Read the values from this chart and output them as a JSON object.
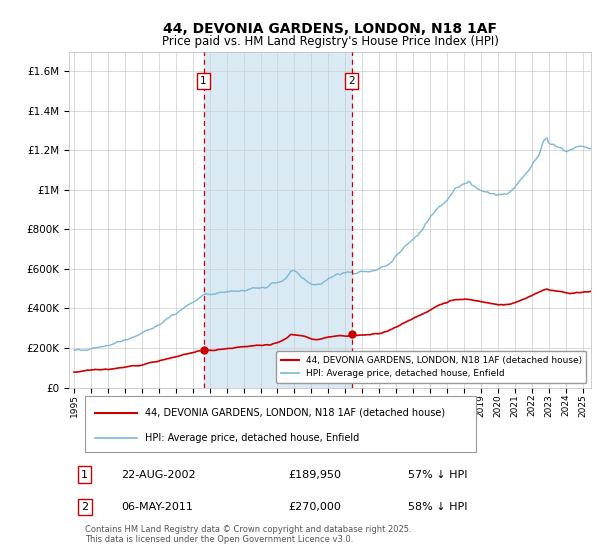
{
  "title": "44, DEVONIA GARDENS, LONDON, N18 1AF",
  "subtitle": "Price paid vs. HM Land Registry's House Price Index (HPI)",
  "legend_line1": "44, DEVONIA GARDENS, LONDON, N18 1AF (detached house)",
  "legend_line2": "HPI: Average price, detached house, Enfield",
  "footer": "Contains HM Land Registry data © Crown copyright and database right 2025.\nThis data is licensed under the Open Government Licence v3.0.",
  "sale1_date": "22-AUG-2002",
  "sale1_price": "£189,950",
  "sale1_hpi": "57% ↓ HPI",
  "sale1_x": 2002.64,
  "sale1_y": 189950,
  "sale2_date": "06-MAY-2011",
  "sale2_price": "£270,000",
  "sale2_hpi": "58% ↓ HPI",
  "sale2_x": 2011.37,
  "sale2_y": 270000,
  "hpi_color": "#7ab8d9",
  "price_color": "#cc0000",
  "vline_color": "#cc0000",
  "shade_color": "#daeaf5",
  "background_color": "#ffffff",
  "grid_color": "#cccccc",
  "ylim": [
    0,
    1700000
  ],
  "xlim": [
    1994.7,
    2025.5
  ]
}
